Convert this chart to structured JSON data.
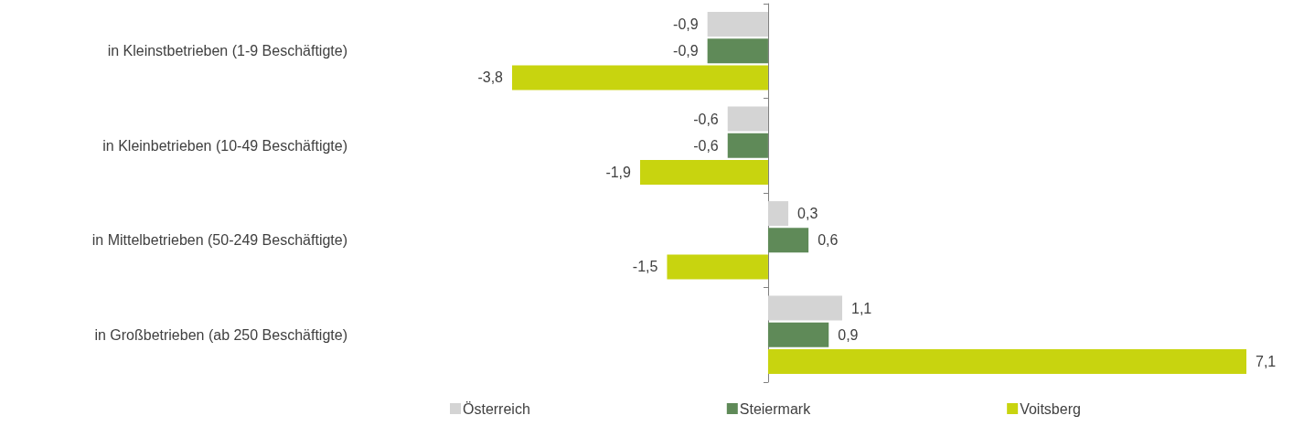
{
  "chart_data": {
    "type": "bar",
    "orientation": "horizontal",
    "categories": [
      "in Kleinstbetrieben (1-9 Beschäftigte)",
      "in Kleinbetrieben (10-49 Beschäftigte)",
      "in Mittelbetrieben (50-249 Beschäftigte)",
      "in Großbetrieben (ab 250 Beschäftigte)"
    ],
    "series": [
      {
        "name": "Österreich",
        "color": "#d4d4d4",
        "values": [
          -0.9,
          -0.6,
          0.3,
          1.1
        ],
        "value_labels": [
          "-0,9",
          "-0,6",
          "0,3",
          "1,1"
        ]
      },
      {
        "name": "Steiermark",
        "color": "#5f8a58",
        "values": [
          -0.9,
          -0.6,
          0.6,
          0.9
        ],
        "value_labels": [
          "-0,9",
          "-0,6",
          "0,6",
          "0,9"
        ]
      },
      {
        "name": "Voitsberg",
        "color": "#c8d40f",
        "values": [
          -3.8,
          -1.9,
          -1.5,
          7.1
        ],
        "value_labels": [
          "-3,8",
          "-1,9",
          "-1,5",
          "7,1"
        ]
      }
    ],
    "legend": "bottom",
    "grid": false
  }
}
